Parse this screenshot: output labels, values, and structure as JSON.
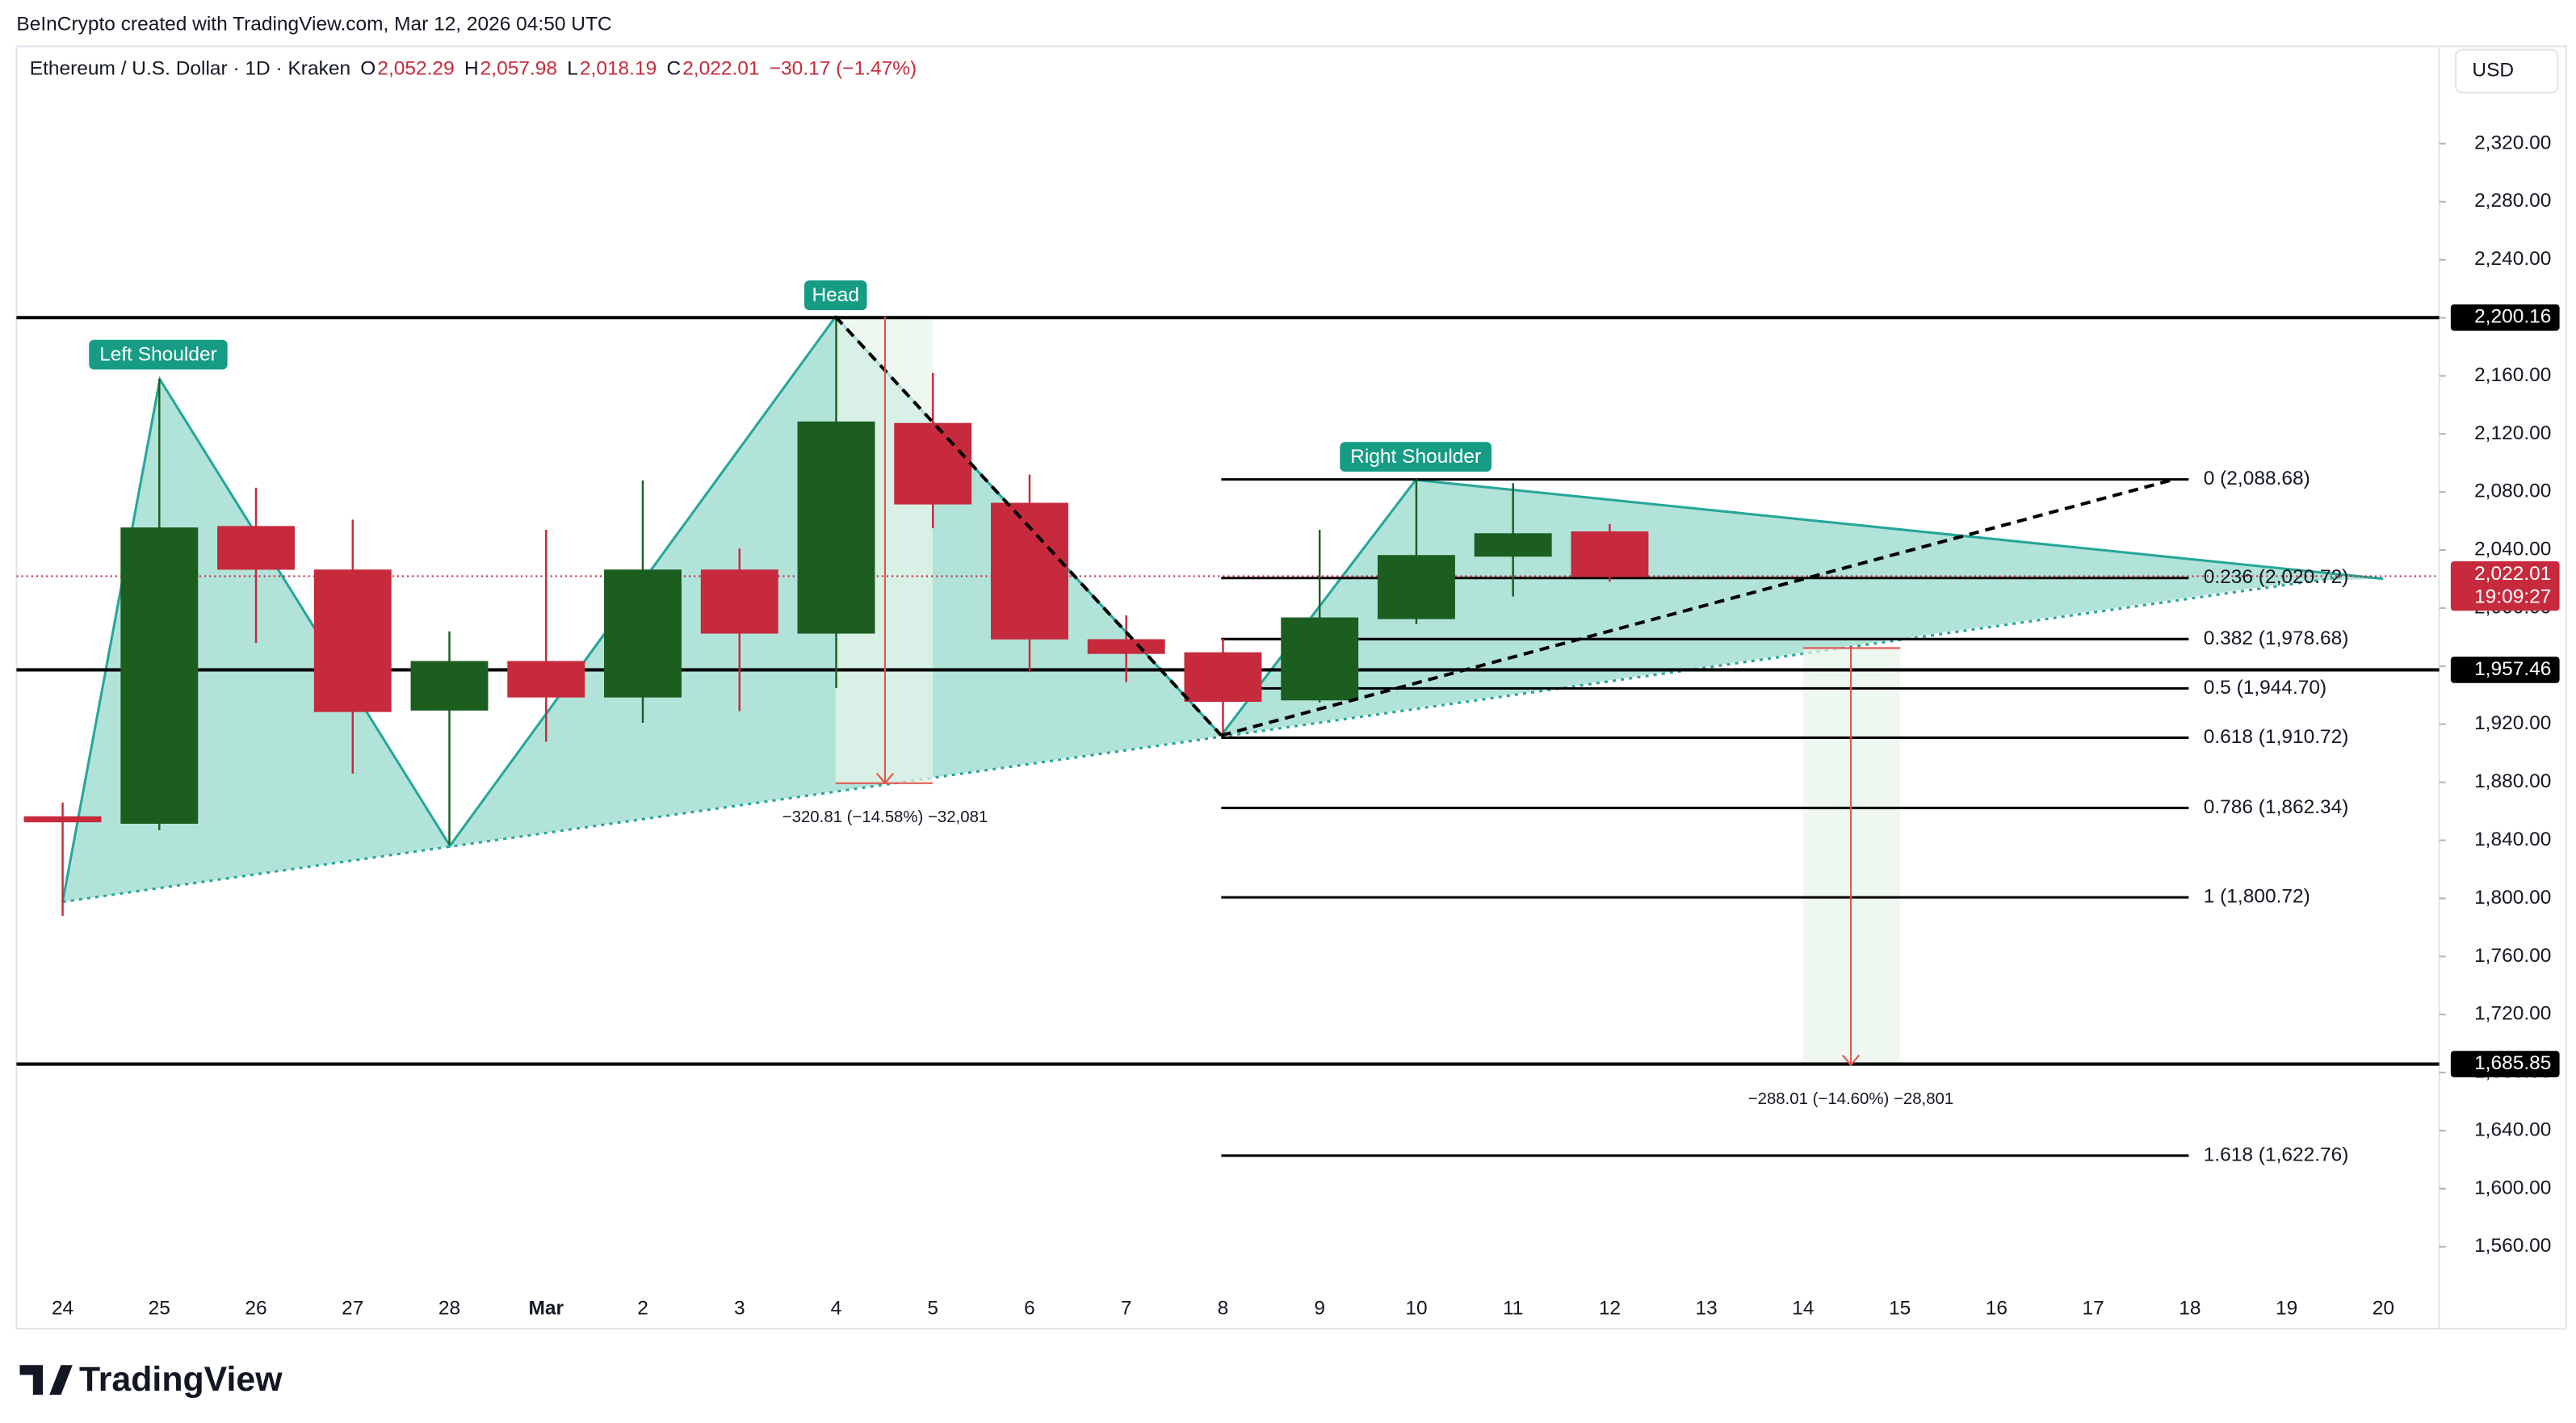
{
  "chart_data": {
    "type": "candlestick",
    "title": "BeInCrypto created with TradingView.com, Mar 12, 2026 04:50 UTC",
    "legend": {
      "symbol": "Ethereum / U.S. Dollar · 1D · Kraken",
      "items": [
        {
          "key": "O",
          "value": "2,052.29"
        },
        {
          "key": "H",
          "value": "2,057.98"
        },
        {
          "key": "L",
          "value": "2,018.19"
        },
        {
          "key": "C",
          "value": "2,022.01"
        }
      ],
      "change": "−30.17 (−1.47%)"
    },
    "currency": "USD",
    "categories": [
      "24",
      "25",
      "26",
      "27",
      "28",
      "Mar",
      "2",
      "3",
      "4",
      "5",
      "6",
      "7",
      "8",
      "9",
      "10",
      "11",
      "12",
      "13",
      "14",
      "15",
      "16",
      "17",
      "18",
      "19",
      "20"
    ],
    "open": [
      1856,
      1852,
      2056,
      2026,
      1930,
      1963,
      1939,
      2026,
      1983,
      2127,
      2072,
      1978,
      1969,
      1937,
      1993,
      2036,
      2052.29,
      null,
      null,
      null,
      null,
      null,
      null,
      null,
      null
    ],
    "high": [
      1866,
      2158,
      2083,
      2061,
      1984,
      2054,
      2088,
      2041,
      2200,
      2162,
      2092,
      1995,
      1979,
      2054,
      2089,
      2086,
      2057.98,
      null,
      null,
      null,
      null,
      null,
      null,
      null,
      null
    ],
    "low": [
      1788,
      1847,
      1976,
      1886,
      1837,
      1908,
      1921,
      1929,
      1945,
      2055,
      1956,
      1949,
      1912,
      1935,
      1989,
      2008,
      2018.19,
      null,
      null,
      null,
      null,
      null,
      null,
      null,
      null
    ],
    "close": [
      1853,
      2055,
      2027,
      1929,
      1963,
      1939,
      2026,
      1983,
      2128,
      2072,
      1979,
      1969,
      1936,
      1993,
      2036,
      2051,
      2022.01,
      null,
      null,
      null,
      null,
      null,
      null,
      null,
      null
    ],
    "up_color": "#1b5e20",
    "down_color": "#c62a3c",
    "ylim": [
      1533,
      2387
    ],
    "yticks": [
      {
        "value": 1560,
        "label": "1,560.00"
      },
      {
        "value": 1600,
        "label": "1,600.00"
      },
      {
        "value": 1640,
        "label": "1,640.00"
      },
      {
        "value": 1680,
        "label": "1,680.00"
      },
      {
        "value": 1720,
        "label": "1,720.00"
      },
      {
        "value": 1760,
        "label": "1,760.00"
      },
      {
        "value": 1800,
        "label": "1,800.00"
      },
      {
        "value": 1840,
        "label": "1,840.00"
      },
      {
        "value": 1880,
        "label": "1,880.00"
      },
      {
        "value": 1920,
        "label": "1,920.00"
      },
      {
        "value": 1960,
        "label": "1,960.00"
      },
      {
        "value": 2000,
        "label": "2,000.00"
      },
      {
        "value": 2040,
        "label": "2,040.00"
      },
      {
        "value": 2080,
        "label": "2,080.00"
      },
      {
        "value": 2120,
        "label": "2,120.00"
      },
      {
        "value": 2160,
        "label": "2,160.00"
      },
      {
        "value": 2200,
        "label": "2,200.00"
      },
      {
        "value": 2240,
        "label": "2,240.00"
      },
      {
        "value": 2280,
        "label": "2,280.00"
      },
      {
        "value": 2320,
        "label": "2,320.00"
      }
    ],
    "levels": [
      {
        "value": 2200.16,
        "label": "2,200.16"
      },
      {
        "value": 1957.46,
        "label": "1,957.46"
      },
      {
        "value": 1685.85,
        "label": "1,685.85"
      }
    ],
    "current_price": {
      "value": 2022.01,
      "label": "2,022.01",
      "countdown": "19:09:27"
    },
    "fib_levels": [
      {
        "value": 2088.68,
        "label": "0 (2,088.68)"
      },
      {
        "value": 2020.72,
        "label": "0.236 (2,020.72)"
      },
      {
        "value": 1978.68,
        "label": "0.382 (1,978.68)"
      },
      {
        "value": 1944.7,
        "label": "0.5 (1,944.70)"
      },
      {
        "value": 1910.72,
        "label": "0.618 (1,910.72)"
      },
      {
        "value": 1862.34,
        "label": "0.786 (1,862.34)"
      },
      {
        "value": 1800.72,
        "label": "1 (1,800.72)"
      },
      {
        "value": 1622.76,
        "label": "1.618 (1,622.76)"
      }
    ],
    "annotations": {
      "left_shoulder": "Left Shoulder",
      "head": "Head",
      "right_shoulder": "Right Shoulder"
    },
    "measures": [
      "−320.81 (−14.58%) −32,081",
      "−288.01 (−14.60%) −28,801"
    ],
    "brand": "TradingView"
  }
}
